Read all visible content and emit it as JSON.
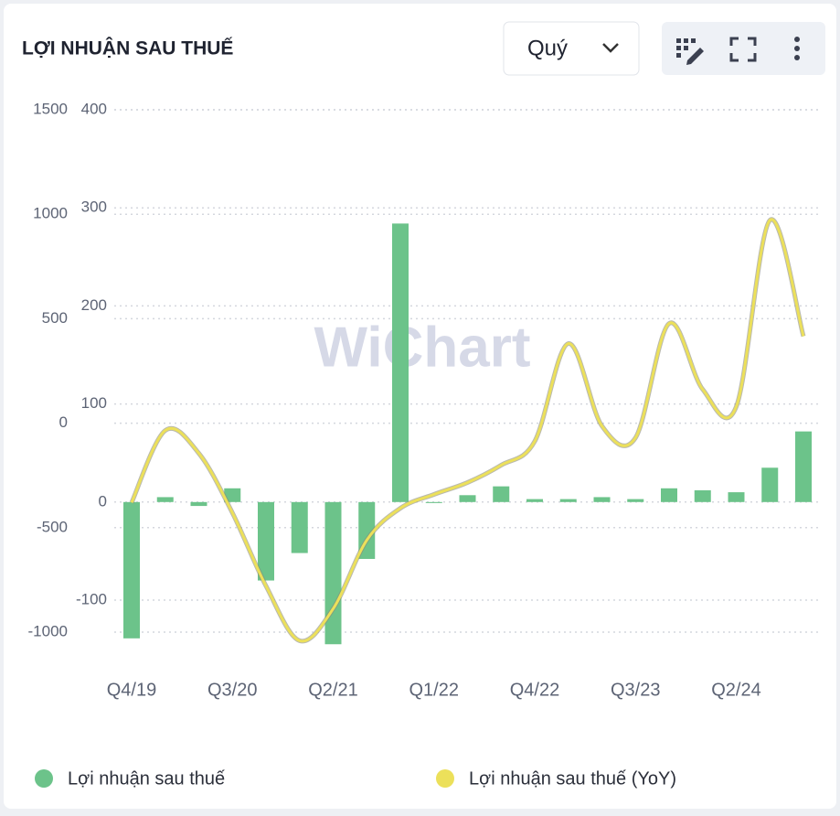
{
  "chart_data": {
    "type": "bar_line",
    "title": "LỢI NHUẬN SAU THUẾ",
    "period_select": "Quý",
    "watermark": "WiChart",
    "categories": [
      "Q4/19",
      null,
      null,
      "Q3/20",
      null,
      null,
      "Q2/21",
      null,
      null,
      "Q1/22",
      null,
      null,
      "Q4/22",
      null,
      null,
      "Q3/23",
      null,
      null,
      "Q2/24",
      null,
      null
    ],
    "series": [
      {
        "name": "Lợi nhuận sau thuế",
        "color": "#6cc38a",
        "type": "bar",
        "axis": "y2",
        "values": [
          -139,
          5,
          -4,
          14,
          -80,
          -52,
          -145,
          -58,
          284,
          -1,
          7,
          16,
          3,
          3,
          5,
          3,
          14,
          12,
          10,
          35,
          72
        ]
      },
      {
        "name": "Lợi nhuận sau thuế (YoY)",
        "color": "#ece05a",
        "type": "line",
        "axis": "y",
        "values": [
          -380,
          -35,
          -144,
          -429,
          -779,
          -1041,
          -888,
          -560,
          -407,
          -341,
          -284,
          -201,
          -87,
          381,
          -13,
          -70,
          477,
          162,
          79,
          971,
          416
        ]
      }
    ],
    "ylim": [
      -1000,
      1500
    ],
    "yticks": [
      -1000,
      -500,
      0,
      500,
      1000,
      1500
    ],
    "y2lim": [
      -100,
      400
    ],
    "y2ticks": [
      -100,
      0,
      100,
      200,
      300,
      400
    ],
    "grid": true,
    "legend": "bottom"
  }
}
